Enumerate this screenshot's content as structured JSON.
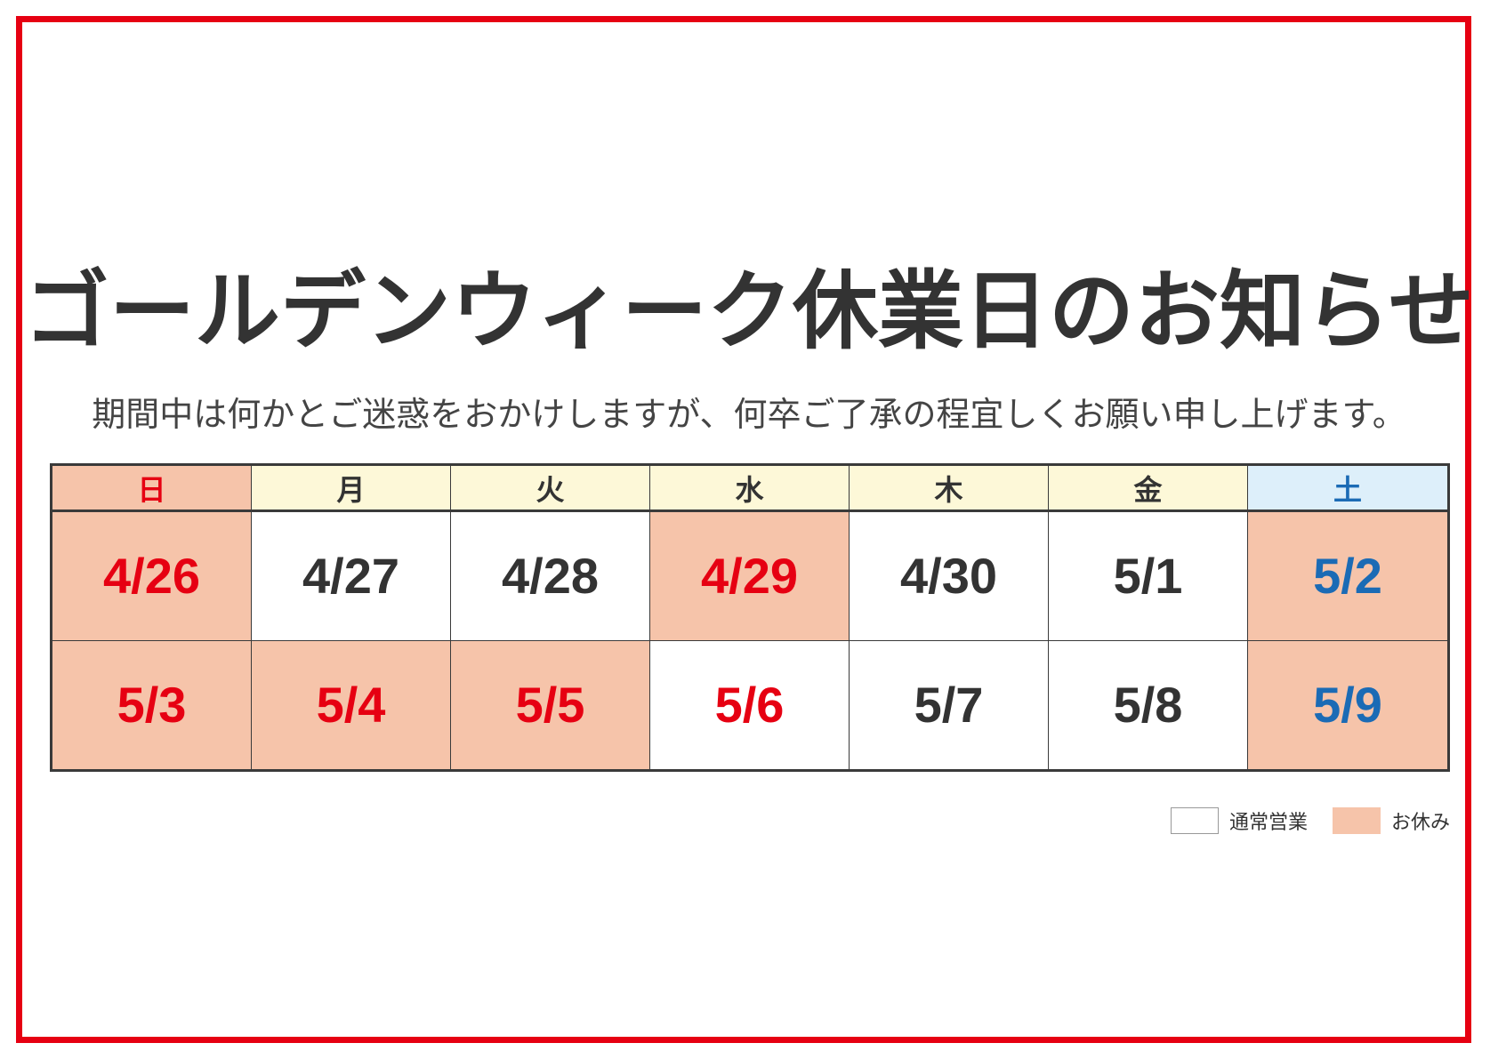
{
  "title": "ゴールデンウィーク休業日のお知らせ",
  "subtitle": "期間中は何かとご迷惑をおかけしますが、何卒ご了承の程宜しくお願い申し上げます。",
  "colors": {
    "border_red": "#e60012",
    "holiday_bg": "#f6c4aa",
    "weekday_header_bg": "#fdf8d8",
    "saturday_header_bg": "#ddeffa",
    "open_bg": "#ffffff",
    "red_text": "#e60012",
    "blue_text": "#1b6bb5",
    "dark_text": "#333333"
  },
  "calendar": {
    "headers": [
      {
        "label": "日",
        "bg": "#f6c4aa",
        "color": "#e60012"
      },
      {
        "label": "月",
        "bg": "#fdf8d8",
        "color": "#333333"
      },
      {
        "label": "火",
        "bg": "#fdf8d8",
        "color": "#333333"
      },
      {
        "label": "水",
        "bg": "#fdf8d8",
        "color": "#333333"
      },
      {
        "label": "木",
        "bg": "#fdf8d8",
        "color": "#333333"
      },
      {
        "label": "金",
        "bg": "#fdf8d8",
        "color": "#333333"
      },
      {
        "label": "土",
        "bg": "#ddeffa",
        "color": "#1b6bb5"
      }
    ],
    "weeks": [
      [
        {
          "date": "4/26",
          "closed": true,
          "color": "#e60012"
        },
        {
          "date": "4/27",
          "closed": false,
          "color": "#333333"
        },
        {
          "date": "4/28",
          "closed": false,
          "color": "#333333"
        },
        {
          "date": "4/29",
          "closed": true,
          "color": "#e60012"
        },
        {
          "date": "4/30",
          "closed": false,
          "color": "#333333"
        },
        {
          "date": "5/1",
          "closed": false,
          "color": "#333333"
        },
        {
          "date": "5/2",
          "closed": true,
          "color": "#1b6bb5"
        }
      ],
      [
        {
          "date": "5/3",
          "closed": true,
          "color": "#e60012"
        },
        {
          "date": "5/4",
          "closed": true,
          "color": "#e60012"
        },
        {
          "date": "5/5",
          "closed": true,
          "color": "#e60012"
        },
        {
          "date": "5/6",
          "closed": false,
          "color": "#e60012"
        },
        {
          "date": "5/7",
          "closed": false,
          "color": "#333333"
        },
        {
          "date": "5/8",
          "closed": false,
          "color": "#333333"
        },
        {
          "date": "5/9",
          "closed": true,
          "color": "#1b6bb5"
        }
      ]
    ]
  },
  "legend": {
    "open_label": "通常営業",
    "closed_label": "お休み"
  }
}
